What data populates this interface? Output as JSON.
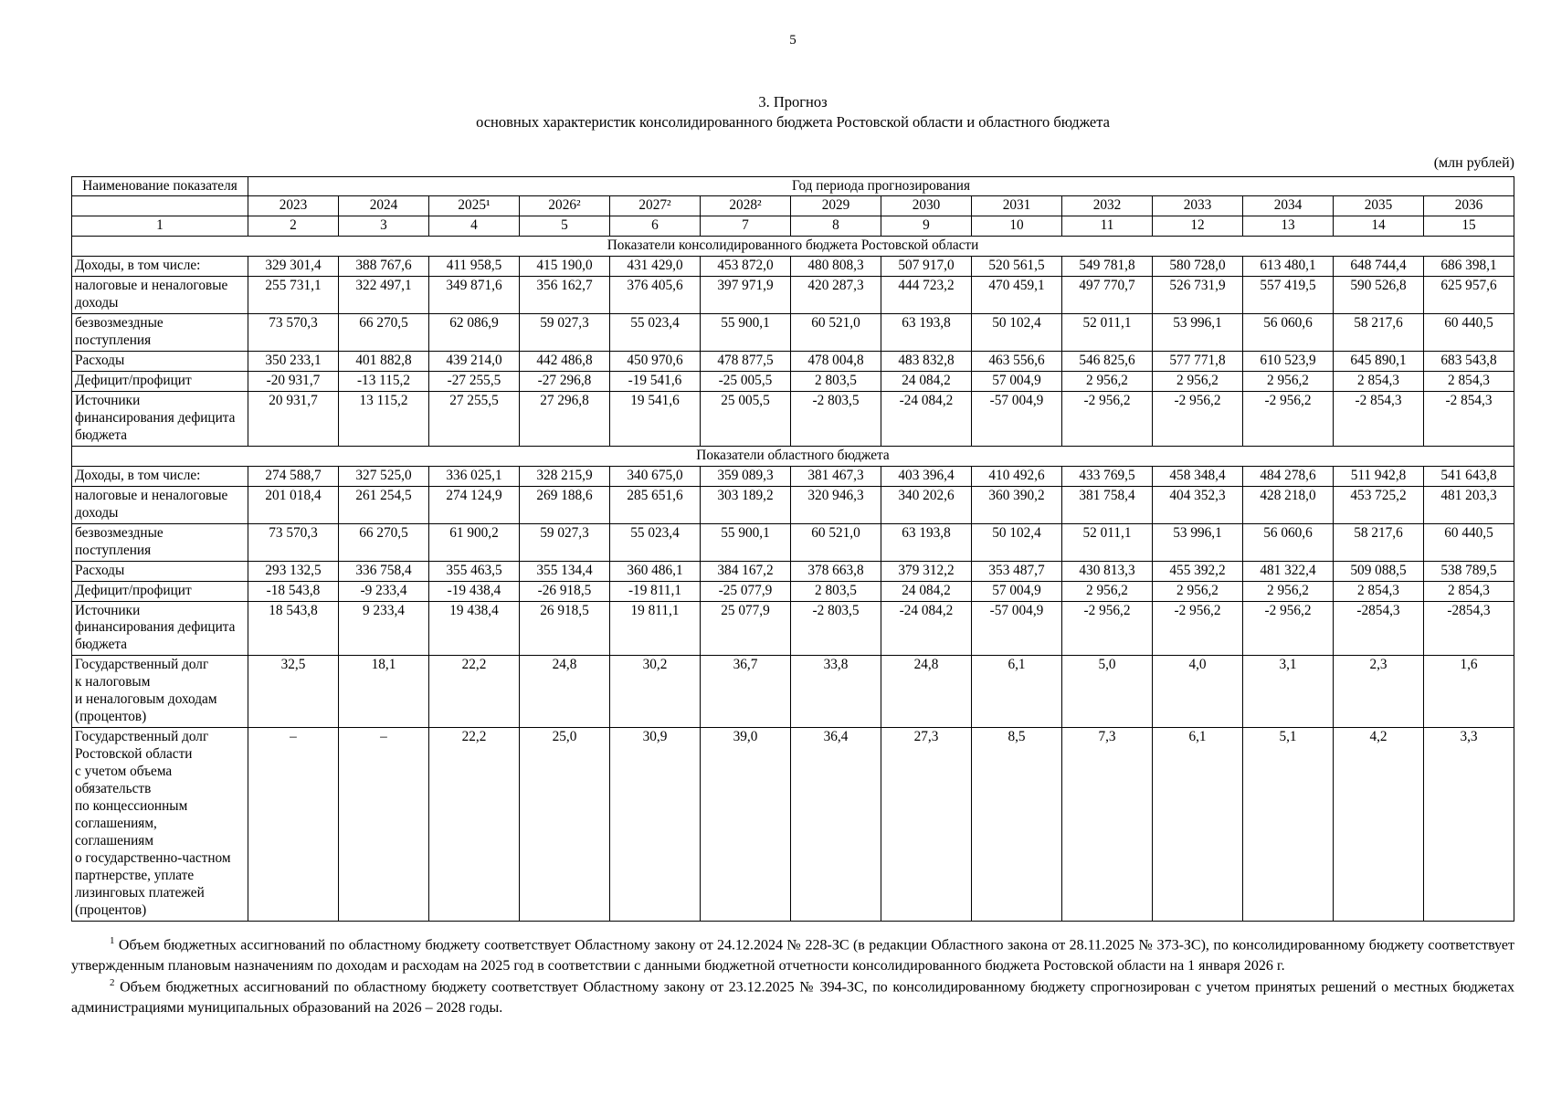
{
  "page": {
    "number": "5"
  },
  "title": {
    "line1": "3. Прогноз",
    "line2": "основных характеристик консолидированного бюджета Ростовской области и областного бюджета"
  },
  "units": "(млн рублей)",
  "table": {
    "corner_header": "Наименование показателя",
    "group_header": "Год периода прогнозирования",
    "years": [
      "2023",
      "2024",
      "2025¹",
      "2026²",
      "2027²",
      "2028²",
      "2029",
      "2030",
      "2031",
      "2032",
      "2033",
      "2034",
      "2035",
      "2036"
    ],
    "column_numbers": [
      "1",
      "2",
      "3",
      "4",
      "5",
      "6",
      "7",
      "8",
      "9",
      "10",
      "11",
      "12",
      "13",
      "14",
      "15"
    ],
    "sections": [
      {
        "title": "Показатели консолидированного бюджета Ростовской области",
        "rows": [
          {
            "label": "Доходы, в том числе:",
            "values": [
              "329 301,4",
              "388 767,6",
              "411 958,5",
              "415 190,0",
              "431 429,0",
              "453 872,0",
              "480 808,3",
              "507 917,0",
              "520 561,5",
              "549 781,8",
              "580 728,0",
              "613 480,1",
              "648 744,4",
              "686 398,1"
            ]
          },
          {
            "label": "налоговые и неналоговые\nдоходы",
            "values": [
              "255 731,1",
              "322 497,1",
              "349 871,6",
              "356 162,7",
              "376 405,6",
              "397 971,9",
              "420 287,3",
              "444 723,2",
              "470 459,1",
              "497 770,7",
              "526 731,9",
              "557 419,5",
              "590 526,8",
              "625 957,6"
            ]
          },
          {
            "label": "безвозмездные\nпоступления",
            "values": [
              "73 570,3",
              "66 270,5",
              "62 086,9",
              "59 027,3",
              "55 023,4",
              "55 900,1",
              "60 521,0",
              "63 193,8",
              "50 102,4",
              "52 011,1",
              "53 996,1",
              "56 060,6",
              "58 217,6",
              "60 440,5"
            ]
          },
          {
            "label": "Расходы",
            "values": [
              "350 233,1",
              "401 882,8",
              "439 214,0",
              "442 486,8",
              "450 970,6",
              "478 877,5",
              "478 004,8",
              "483 832,8",
              "463 556,6",
              "546 825,6",
              "577 771,8",
              "610 523,9",
              "645 890,1",
              "683 543,8"
            ]
          },
          {
            "label": "Дефицит/профицит",
            "values": [
              "-20 931,7",
              "-13 115,2",
              "-27 255,5",
              "-27 296,8",
              "-19 541,6",
              "-25 005,5",
              "2 803,5",
              "24 084,2",
              "57 004,9",
              "2 956,2",
              "2 956,2",
              "2 956,2",
              "2 854,3",
              "2 854,3"
            ]
          },
          {
            "label": "Источники\nфинансирования дефицита\nбюджета",
            "values": [
              "20 931,7",
              "13 115,2",
              "27 255,5",
              "27 296,8",
              "19 541,6",
              "25 005,5",
              "-2 803,5",
              "-24 084,2",
              "-57 004,9",
              "-2 956,2",
              "-2 956,2",
              "-2 956,2",
              "-2 854,3",
              "-2 854,3"
            ]
          }
        ]
      },
      {
        "title": "Показатели областного бюджета",
        "rows": [
          {
            "label": "Доходы, в том числе:",
            "values": [
              "274 588,7",
              "327 525,0",
              "336 025,1",
              "328 215,9",
              "340 675,0",
              "359 089,3",
              "381 467,3",
              "403 396,4",
              "410 492,6",
              "433 769,5",
              "458 348,4",
              "484 278,6",
              "511 942,8",
              "541 643,8"
            ]
          },
          {
            "label": "налоговые и неналоговые\nдоходы",
            "values": [
              "201 018,4",
              "261 254,5",
              "274 124,9",
              "269 188,6",
              "285 651,6",
              "303 189,2",
              "320 946,3",
              "340 202,6",
              "360 390,2",
              "381 758,4",
              "404 352,3",
              "428 218,0",
              "453 725,2",
              "481 203,3"
            ]
          },
          {
            "label": "безвозмездные\nпоступления",
            "values": [
              "73 570,3",
              "66 270,5",
              "61 900,2",
              "59 027,3",
              "55 023,4",
              "55 900,1",
              "60 521,0",
              "63 193,8",
              "50 102,4",
              "52 011,1",
              "53 996,1",
              "56 060,6",
              "58 217,6",
              "60 440,5"
            ]
          },
          {
            "label": "Расходы",
            "values": [
              "293 132,5",
              "336 758,4",
              "355 463,5",
              "355 134,4",
              "360 486,1",
              "384 167,2",
              "378 663,8",
              "379 312,2",
              "353 487,7",
              "430 813,3",
              "455 392,2",
              "481 322,4",
              "509 088,5",
              "538 789,5"
            ]
          },
          {
            "label": "Дефицит/профицит",
            "values": [
              "-18 543,8",
              "-9 233,4",
              "-19 438,4",
              "-26 918,5",
              "-19 811,1",
              "-25 077,9",
              "2 803,5",
              "24 084,2",
              "57 004,9",
              "2 956,2",
              "2 956,2",
              "2 956,2",
              "2 854,3",
              "2 854,3"
            ]
          },
          {
            "label": "Источники\nфинансирования дефицита\nбюджета",
            "values": [
              "18 543,8",
              "9 233,4",
              "19 438,4",
              "26 918,5",
              "19 811,1",
              "25 077,9",
              "-2 803,5",
              "-24 084,2",
              "-57 004,9",
              "-2 956,2",
              "-2 956,2",
              "-2 956,2",
              "-2854,3",
              "-2854,3"
            ]
          },
          {
            "label": "Государственный долг\nк налоговым\nи неналоговым доходам\n(процентов)",
            "values": [
              "32,5",
              "18,1",
              "22,2",
              "24,8",
              "30,2",
              "36,7",
              "33,8",
              "24,8",
              "6,1",
              "5,0",
              "4,0",
              "3,1",
              "2,3",
              "1,6"
            ]
          },
          {
            "label": "Государственный долг\nРостовской области\nс учетом объема\nобязательств\nпо концессионным\nсоглашениям,\nсоглашениям\nо государственно-частном\nпартнерстве, уплате\nлизинговых платежей\n(процентов)",
            "values": [
              "–",
              "–",
              "22,2",
              "25,0",
              "30,9",
              "39,0",
              "36,4",
              "27,3",
              "8,5",
              "7,3",
              "6,1",
              "5,1",
              "4,2",
              "3,3"
            ]
          }
        ]
      }
    ]
  },
  "footnotes": [
    {
      "marker": "1",
      "text": "Объем бюджетных ассигнований по областному бюджету соответствует Областному закону от 24.12.2024 № 228-ЗС (в редакции Областного закона от 28.11.2025 № 373-ЗС), по консолидированному бюджету соответствует утвержденным плановым назначениям по доходам и расходам на 2025 год в соответствии с данными бюджетной отчетности консолидированного бюджета Ростовской области на 1 января 2026 г."
    },
    {
      "marker": "2",
      "text": "Объем бюджетных ассигнований по областному бюджету соответствует Областному закону от 23.12.2025 № 394-ЗС, по консолидированному бюджету спрогнозирован с учетом принятых решений о местных бюджетах администрациями муниципальных образований на 2026 – 2028 годы."
    }
  ]
}
